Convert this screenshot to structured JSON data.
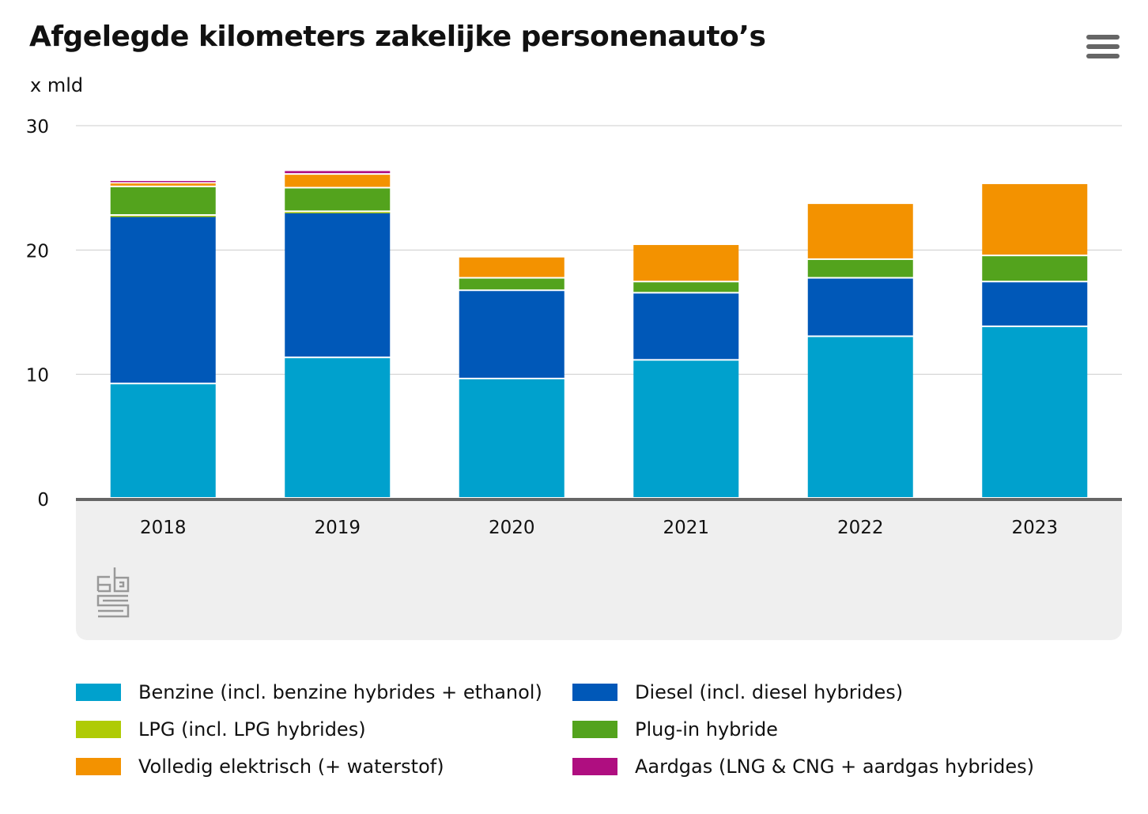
{
  "title": "Afgelegde kilometers zakelijke personenauto’s",
  "unit": "x mld",
  "chart_data": {
    "type": "bar",
    "stacked": true,
    "title": "Afgelegde kilometers zakelijke personenauto’s",
    "ylabel": "x mld",
    "ylim": [
      0,
      30
    ],
    "yticks": [
      0,
      10,
      20,
      30
    ],
    "grid": true,
    "categories": [
      "2018",
      "2019",
      "2020",
      "2021",
      "2022",
      "2023"
    ],
    "series": [
      {
        "name": "Benzine (incl. benzine hybrides + ethanol)",
        "color": "#00a1cd",
        "values": [
          9.2,
          11.3,
          9.6,
          11.1,
          13.0,
          13.8
        ]
      },
      {
        "name": "Diesel (incl. diesel hybrides)",
        "color": "#0058b8",
        "values": [
          13.5,
          11.7,
          7.1,
          5.4,
          4.7,
          3.6
        ]
      },
      {
        "name": "LPG (incl. LPG hybrides)",
        "color": "#afcb05",
        "values": [
          0.05,
          0.05,
          0.0,
          0.0,
          0.0,
          0.0
        ]
      },
      {
        "name": "Plug-in hybride",
        "color": "#53a31d",
        "values": [
          2.3,
          1.9,
          1.0,
          0.9,
          1.5,
          2.1
        ]
      },
      {
        "name": "Volledig elektrisch (+ waterstof)",
        "color": "#f39200",
        "values": [
          0.3,
          1.1,
          1.7,
          3.0,
          4.5,
          5.8
        ]
      },
      {
        "name": "Aardgas (LNG & CNG + aardgas hybrides)",
        "color": "#af0e80",
        "values": [
          0.2,
          0.3,
          0.0,
          0.0,
          0.0,
          0.0
        ]
      }
    ],
    "legend_position": "bottom"
  }
}
